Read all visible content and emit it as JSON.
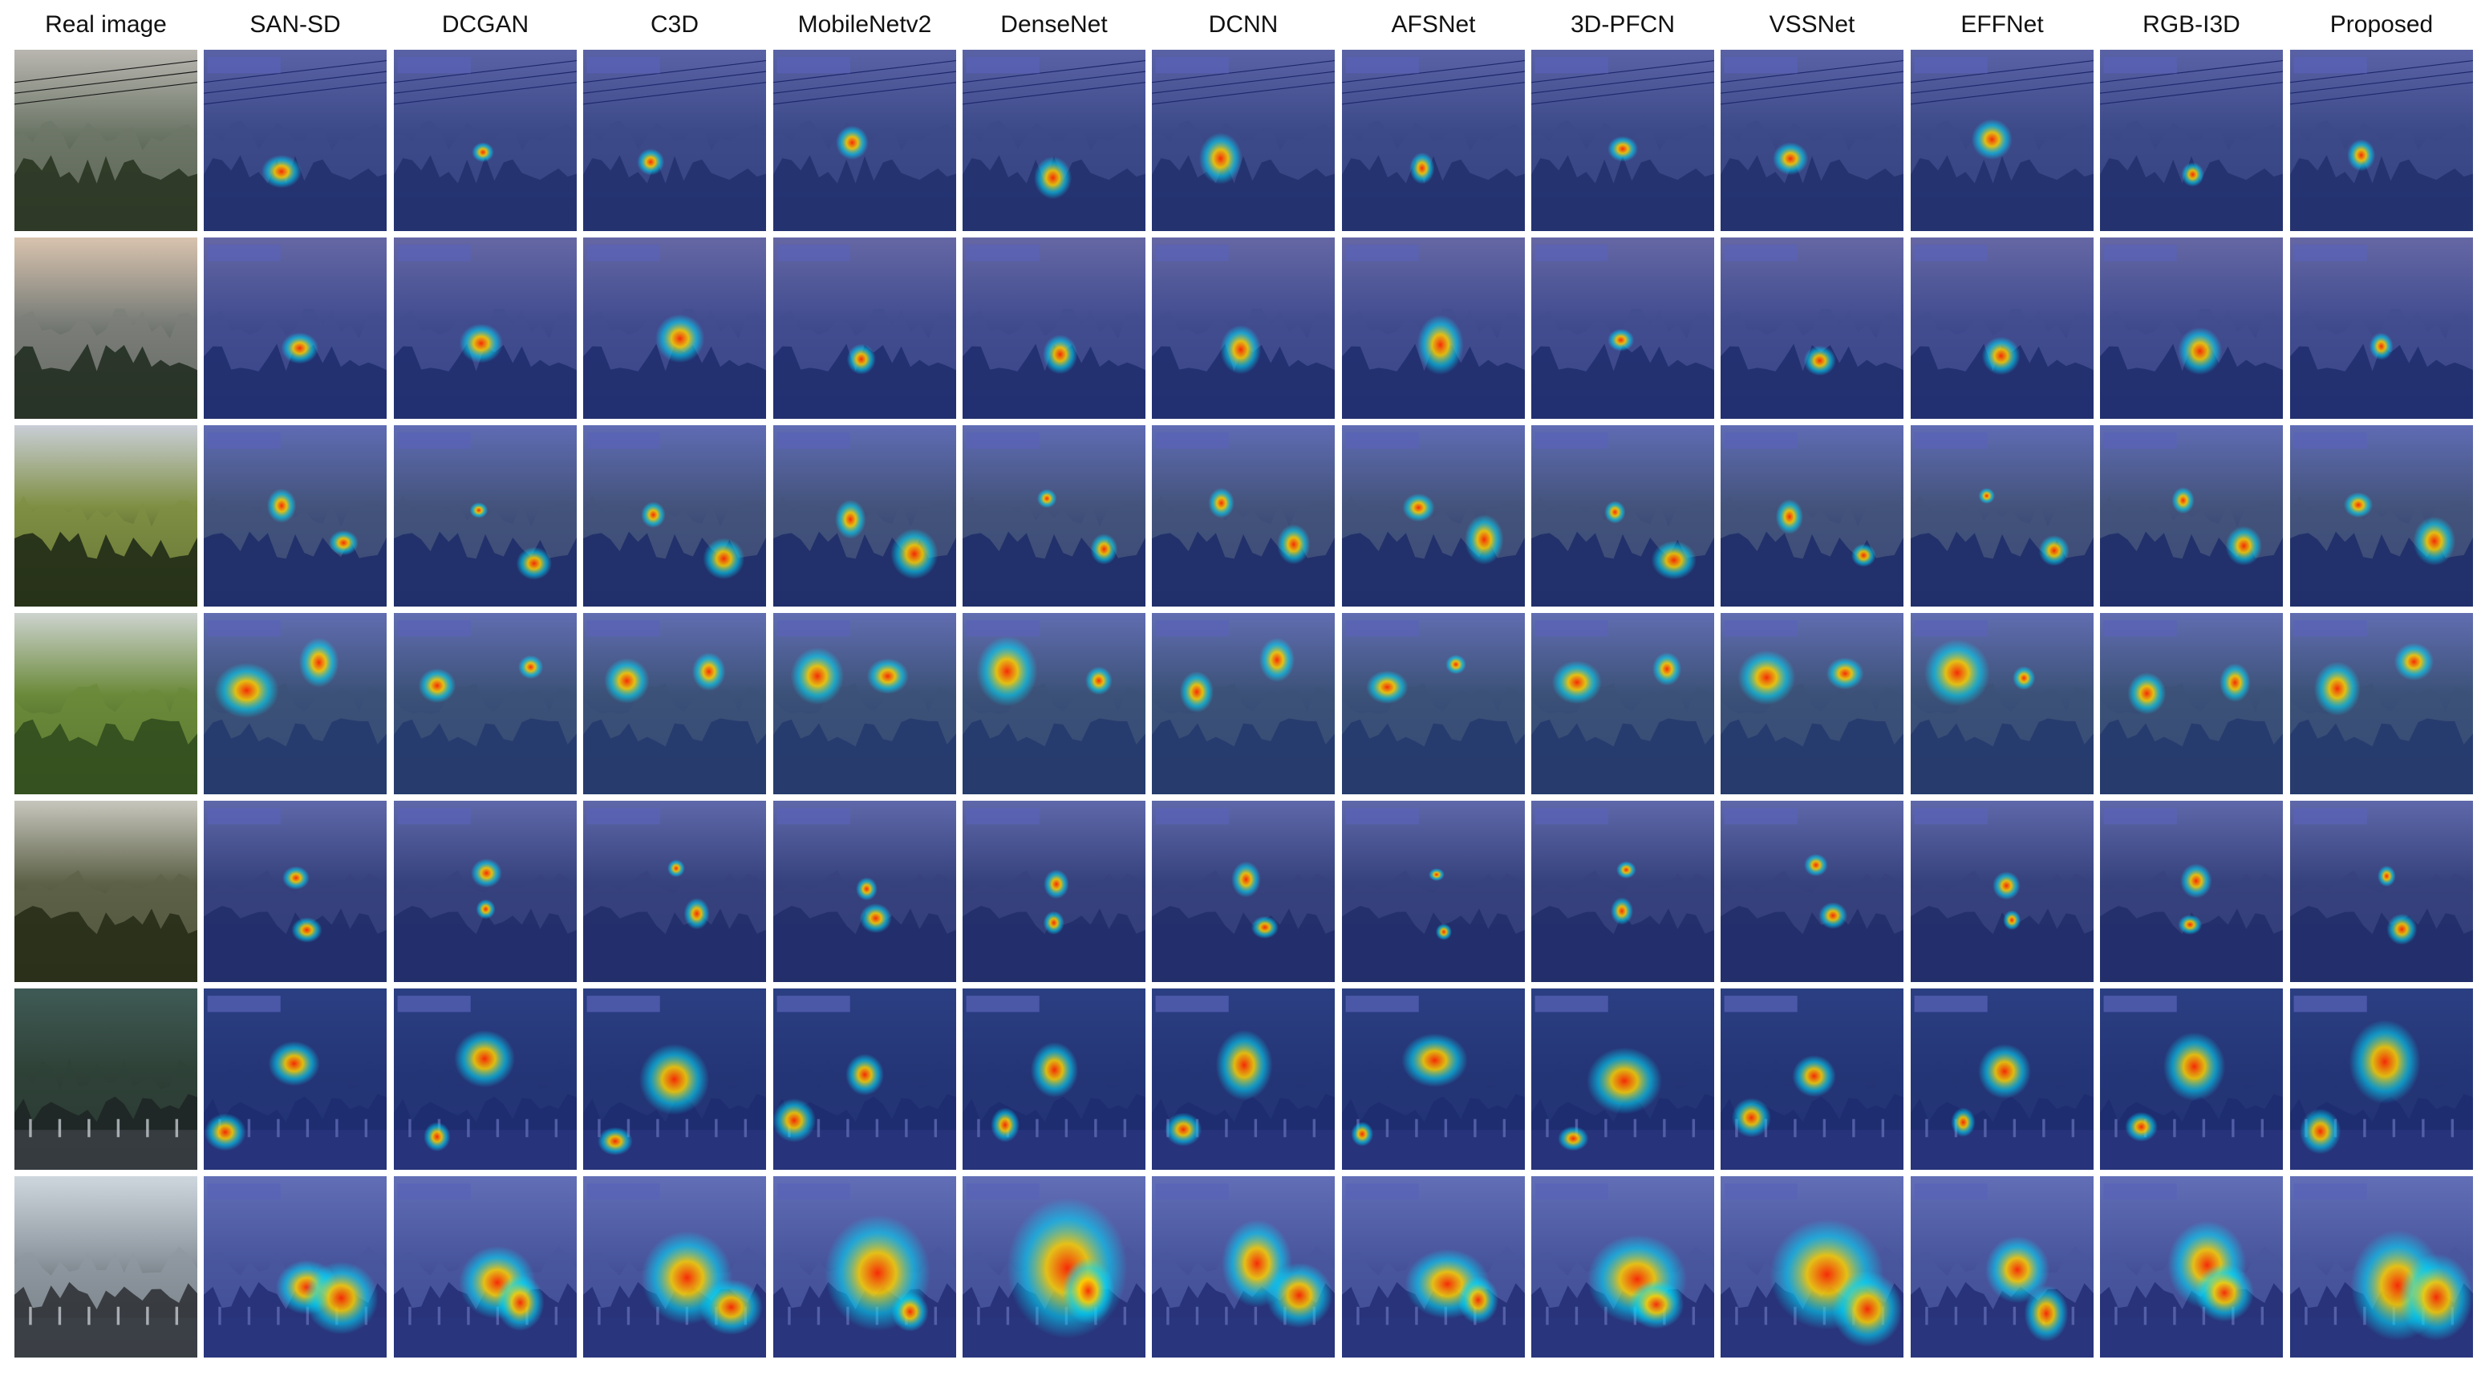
{
  "figure": {
    "columns": [
      "Real image",
      "SAN-SD",
      "DCGAN",
      "C3D",
      "MobileNetv2",
      "DenseNet",
      "DCNN",
      "AFSNet",
      "3D-PFCN",
      "VSSNet",
      "EFFNet",
      "RGB-I3D",
      "Proposed"
    ],
    "rows": [
      {
        "scene": "mountain-haze-powerlines",
        "palette": {
          "sky": "#b9b6b0",
          "mid": "#6d7768",
          "ground": "#27311f"
        }
      },
      {
        "scene": "mountain-sunset-haze",
        "palette": {
          "sky": "#d8c3ae",
          "mid": "#7c7f7a",
          "ground": "#1f2a1d"
        }
      },
      {
        "scene": "green-mountain-slope",
        "palette": {
          "sky": "#c9ced6",
          "mid": "#7f8f43",
          "ground": "#1c2714"
        }
      },
      {
        "scene": "forested-ridge",
        "palette": {
          "sky": "#cdd3cf",
          "mid": "#6b8a3a",
          "ground": "#2e4a1c"
        }
      },
      {
        "scene": "dusk-valley",
        "palette": {
          "sky": "#c7c6bd",
          "mid": "#5d6248",
          "ground": "#242a15"
        }
      },
      {
        "scene": "forest-industrial",
        "palette": {
          "sky": "#3f5a55",
          "mid": "#2f4238",
          "ground": "#1d2523"
        }
      },
      {
        "scene": "bright-sky-industrial",
        "palette": {
          "sky": "#cfd7de",
          "mid": "#8f98a0",
          "ground": "#2b2e33"
        }
      }
    ],
    "overlay_colors": {
      "base": "#1f2f9e",
      "hot": "#ff2a00",
      "warm": "#ffd200",
      "mid": "#00e0ff"
    }
  }
}
